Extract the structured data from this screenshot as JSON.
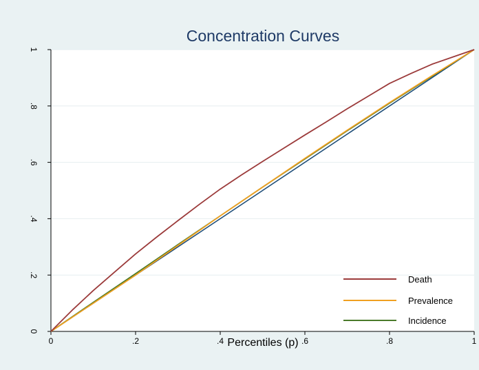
{
  "chart_data": {
    "type": "line",
    "title": "Concentration Curves",
    "xlabel": "Percentiles (p)",
    "ylabel": "",
    "xlim": [
      0,
      1
    ],
    "ylim": [
      0,
      1
    ],
    "xticks": [
      0,
      0.2,
      0.4,
      0.6,
      0.8,
      1
    ],
    "xtick_labels": [
      "0",
      ".2",
      ".4",
      ".6",
      ".8",
      "1"
    ],
    "yticks": [
      0,
      0.2,
      0.4,
      0.6,
      0.8,
      1
    ],
    "ytick_labels": [
      "0",
      ".2",
      ".4",
      ".6",
      ".8",
      "1"
    ],
    "grid": true,
    "legend_position": "bottom-right",
    "equality_line": {
      "color": "#1f4e79",
      "x": [
        0,
        1
      ],
      "y": [
        0,
        1
      ]
    },
    "series": [
      {
        "name": "Death",
        "color": "#9b3a3a",
        "x": [
          0,
          0.05,
          0.1,
          0.15,
          0.2,
          0.25,
          0.3,
          0.35,
          0.4,
          0.45,
          0.5,
          0.55,
          0.6,
          0.65,
          0.7,
          0.75,
          0.8,
          0.85,
          0.9,
          0.95,
          1
        ],
        "y": [
          0,
          0.075,
          0.145,
          0.21,
          0.275,
          0.335,
          0.393,
          0.45,
          0.505,
          0.555,
          0.603,
          0.65,
          0.697,
          0.743,
          0.79,
          0.835,
          0.88,
          0.915,
          0.948,
          0.974,
          1
        ]
      },
      {
        "name": "Prevalence",
        "color": "#f0a020",
        "x": [
          0,
          0.1,
          0.2,
          0.3,
          0.4,
          0.5,
          0.6,
          0.7,
          0.8,
          0.9,
          1
        ],
        "y": [
          0,
          0.1,
          0.2,
          0.305,
          0.41,
          0.512,
          0.614,
          0.714,
          0.812,
          0.907,
          1
        ]
      },
      {
        "name": "Incidence",
        "color": "#4a7a2a",
        "x": [
          0,
          0.1,
          0.2,
          0.3,
          0.4,
          0.5,
          0.6,
          0.7,
          0.8,
          0.9,
          1
        ],
        "y": [
          0,
          0.103,
          0.205,
          0.308,
          0.41,
          0.512,
          0.612,
          0.712,
          0.81,
          0.905,
          1
        ]
      }
    ]
  }
}
